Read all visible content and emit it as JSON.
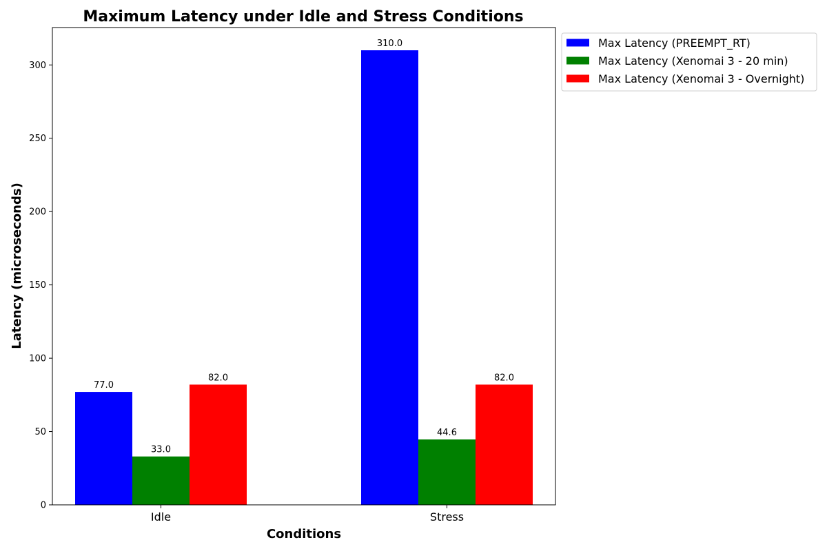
{
  "chart_data": {
    "type": "bar",
    "title": "Maximum Latency under Idle and Stress Conditions",
    "xlabel": "Conditions",
    "ylabel": "Latency (microseconds)",
    "categories": [
      "Idle",
      "Stress"
    ],
    "series": [
      {
        "name": "Max Latency (PREEMPT_RT)",
        "values": [
          77.0,
          310.0
        ],
        "color": "#0000ff"
      },
      {
        "name": "Max Latency (Xenomai 3 - 20 min)",
        "values": [
          33.0,
          44.6
        ],
        "color": "#008000"
      },
      {
        "name": "Max Latency (Xenomai 3 - Overnight)",
        "values": [
          82.0,
          82.0
        ],
        "color": "#ff0000"
      }
    ],
    "data_labels": [
      [
        "77.0",
        "310.0"
      ],
      [
        "33.0",
        "44.6"
      ],
      [
        "82.0",
        "82.0"
      ]
    ],
    "ylim": [
      0,
      325.5
    ],
    "yticks": [
      0,
      50,
      100,
      150,
      200,
      250,
      300
    ],
    "grid": false,
    "legend": "outside-top-right"
  }
}
